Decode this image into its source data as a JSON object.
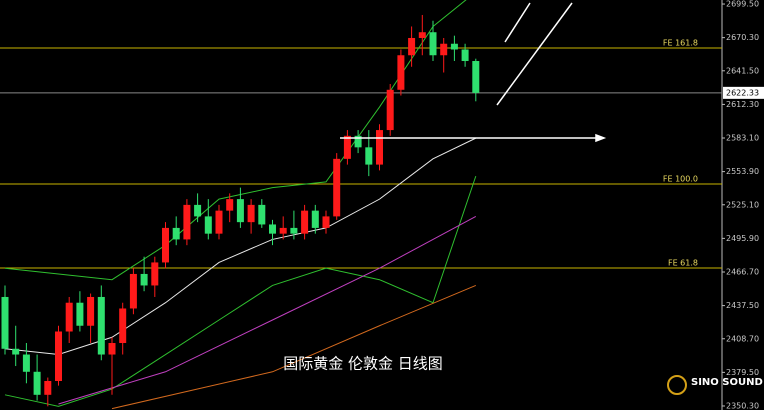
{
  "chart_data": {
    "type": "candlestick",
    "caption": "国际黄金 伦敦金 日线图",
    "brand": "SINO SOUND",
    "up_color": "#ff1a1a",
    "down_color": "#2fe06f",
    "ylim": [
      2346.8,
      2703.0
    ],
    "yticks": [
      {
        "value": 2699.5,
        "label": "2699.50"
      },
      {
        "value": 2670.3,
        "label": "2670.30"
      },
      {
        "value": 2641.5,
        "label": "2641.50"
      },
      {
        "value": 2612.3,
        "label": "2612.30"
      },
      {
        "value": 2583.1,
        "label": "2583.10"
      },
      {
        "value": 2553.9,
        "label": "2553.90"
      },
      {
        "value": 2525.1,
        "label": "2525.10"
      },
      {
        "value": 2495.9,
        "label": "2495.90"
      },
      {
        "value": 2466.7,
        "label": "2466.70"
      },
      {
        "value": 2437.5,
        "label": "2437.50"
      },
      {
        "value": 2408.7,
        "label": "2408.70"
      },
      {
        "value": 2379.5,
        "label": "2379.50"
      },
      {
        "value": 2350.3,
        "label": "2350.30"
      }
    ],
    "last_price": 2622.33,
    "levels": [
      {
        "label": "FE 161.8",
        "value": 2661.3
      },
      {
        "label": "FE 100.0",
        "value": 2543.1
      },
      {
        "label": "FE 61.8",
        "value": 2470.2
      }
    ],
    "candles": {
      "open": [
        2445,
        2400,
        2395,
        2380,
        2360,
        2372,
        2415,
        2440,
        2420,
        2445,
        2395,
        2405,
        2435,
        2465,
        2455,
        2475,
        2505,
        2495,
        2525,
        2515,
        2500,
        2520,
        2530,
        2510,
        2525,
        2508,
        2500,
        2505,
        2500,
        2520,
        2505,
        2515,
        2565,
        2585,
        2575,
        2560,
        2590,
        2625,
        2655,
        2670,
        2675,
        2655,
        2665,
        2660,
        2650
      ],
      "high": [
        2455,
        2420,
        2405,
        2395,
        2375,
        2420,
        2445,
        2450,
        2448,
        2455,
        2410,
        2440,
        2470,
        2480,
        2480,
        2510,
        2515,
        2530,
        2535,
        2530,
        2525,
        2535,
        2540,
        2530,
        2530,
        2512,
        2515,
        2520,
        2525,
        2525,
        2520,
        2570,
        2590,
        2590,
        2590,
        2595,
        2630,
        2660,
        2680,
        2690,
        2685,
        2670,
        2672,
        2665,
        2652
      ],
      "low": [
        2395,
        2385,
        2370,
        2355,
        2350,
        2368,
        2405,
        2415,
        2405,
        2390,
        2360,
        2395,
        2430,
        2450,
        2445,
        2470,
        2490,
        2490,
        2510,
        2495,
        2495,
        2510,
        2505,
        2500,
        2505,
        2490,
        2495,
        2495,
        2495,
        2500,
        2500,
        2512,
        2560,
        2570,
        2550,
        2555,
        2585,
        2620,
        2645,
        2655,
        2650,
        2640,
        2650,
        2645,
        2615
      ],
      "close": [
        2400,
        2395,
        2380,
        2360,
        2372,
        2415,
        2440,
        2420,
        2445,
        2395,
        2405,
        2435,
        2465,
        2455,
        2475,
        2505,
        2495,
        2525,
        2515,
        2500,
        2520,
        2530,
        2510,
        2525,
        2508,
        2500,
        2505,
        2500,
        2520,
        2505,
        2515,
        2565,
        2585,
        2575,
        2560,
        2590,
        2625,
        2655,
        2670,
        2675,
        2655,
        2665,
        2660,
        2650,
        2622.33
      ]
    },
    "overlays": [
      {
        "color": "#2fbf2f",
        "x": [
          0,
          5,
          10,
          15,
          20,
          25,
          30,
          35,
          40,
          44
        ],
        "values": [
          2470,
          2465,
          2460,
          2490,
          2530,
          2540,
          2545,
          2610,
          2680,
          2710
        ]
      },
      {
        "color": "#e8e8e8",
        "x": [
          0,
          5,
          10,
          15,
          20,
          25,
          30,
          35,
          40,
          44
        ],
        "values": [
          2400,
          2395,
          2410,
          2440,
          2475,
          2495,
          2505,
          2530,
          2565,
          2583
        ]
      },
      {
        "color": "#2fbf2f",
        "x": [
          0,
          5,
          10,
          15,
          20,
          25,
          30,
          35,
          40,
          44
        ],
        "values": [
          2360,
          2350,
          2365,
          2395,
          2425,
          2455,
          2470,
          2460,
          2440,
          2550
        ]
      },
      {
        "color": "#c040c0",
        "x": [
          5,
          15,
          25,
          35,
          44
        ],
        "values": [
          2352,
          2380,
          2425,
          2470,
          2515
        ]
      },
      {
        "color": "#d2691e",
        "x": [
          10,
          25,
          35,
          44
        ],
        "values": [
          2348,
          2380,
          2420,
          2455
        ]
      }
    ]
  }
}
